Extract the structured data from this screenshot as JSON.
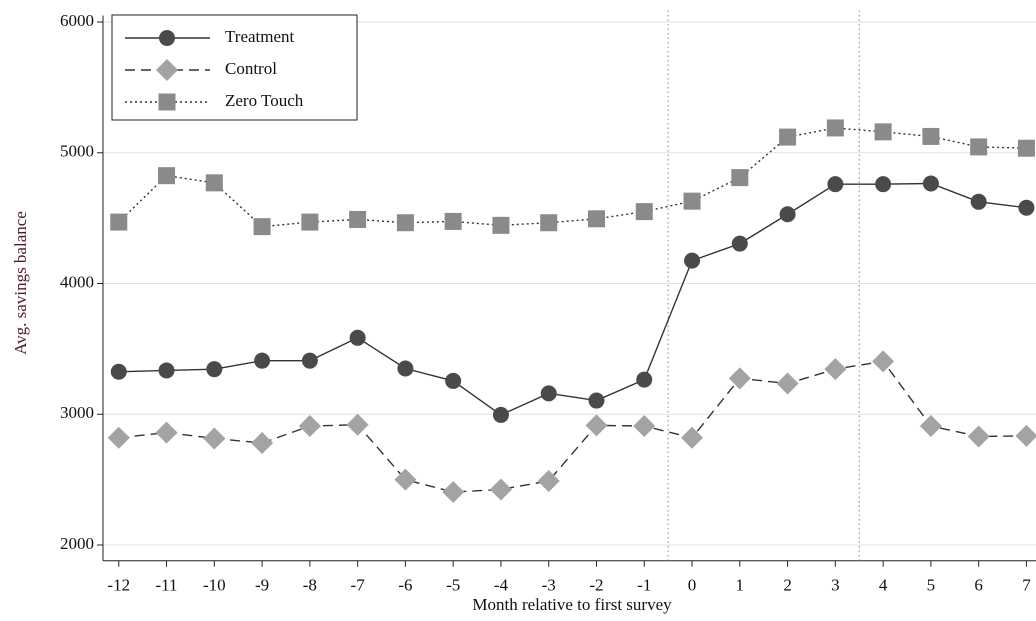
{
  "chart_data": {
    "type": "line",
    "y_label": "Avg. savings balance",
    "x_label": "Month relative to first survey",
    "x": [
      -12,
      -11,
      -10,
      -9,
      -8,
      -7,
      -6,
      -5,
      -4,
      -3,
      -2,
      -1,
      0,
      1,
      2,
      3,
      4,
      5,
      6,
      7
    ],
    "series": [
      {
        "name": "Treatment",
        "color": "#4a4a4a",
        "marker": "circle",
        "dash": "solid",
        "values": [
          3325,
          3335,
          3345,
          3410,
          3410,
          3585,
          3350,
          3255,
          2995,
          3160,
          3105,
          3265,
          4175,
          4305,
          4530,
          4760,
          4760,
          4765,
          4625,
          4580
        ]
      },
      {
        "name": "Control",
        "color": "#a3a3a3",
        "marker": "diamond",
        "dash": "dashed",
        "values": [
          2820,
          2860,
          2815,
          2780,
          2910,
          2920,
          2500,
          2405,
          2425,
          2490,
          2915,
          2910,
          2820,
          3275,
          3235,
          3345,
          3405,
          2910,
          2830,
          2835
        ]
      },
      {
        "name": "Zero Touch",
        "color": "#8a8a8a",
        "marker": "square",
        "dash": "dotted",
        "values": [
          4470,
          4825,
          4770,
          4435,
          4470,
          4490,
          4465,
          4475,
          4445,
          4465,
          4495,
          4550,
          4630,
          4810,
          5120,
          5190,
          5160,
          5125,
          5045,
          5035
        ]
      }
    ],
    "xlim": [
      -12.33,
      7.2
    ],
    "ylim": [
      1880,
      6050
    ],
    "xticks": [
      -12,
      -11,
      -10,
      -9,
      -8,
      -7,
      -6,
      -5,
      -4,
      -3,
      -2,
      -1,
      0,
      1,
      2,
      3,
      4,
      5,
      6,
      7
    ],
    "yticks": [
      2000,
      3000,
      4000,
      5000,
      6000
    ],
    "vlines": [
      -0.5,
      3.5
    ],
    "grid": true,
    "legend": "top-left"
  }
}
